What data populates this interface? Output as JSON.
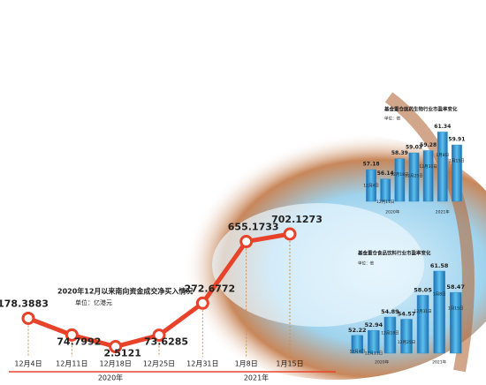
{
  "chart_data": [
    {
      "type": "line",
      "title": "2020年12月以来南向资金成交净买入情况",
      "subtitle": "单位：亿港元",
      "categories": [
        "12月4日",
        "12月11日",
        "12月18日",
        "12月25日",
        "12月31日",
        "1月8日",
        "1月15日"
      ],
      "values": [
        178.3883,
        74.7992,
        2.5121,
        73.6285,
        272.6772,
        655.1733,
        702.1273
      ],
      "color": "#e8432a",
      "year_labels": [
        "2020年",
        "2021年"
      ]
    },
    {
      "type": "bar",
      "title": "基金重仓医药生物行业市盈率变化",
      "subtitle": "单位：倍",
      "categories": [
        "12月4日",
        "12月11日",
        "12月18日",
        "12月25日",
        "12月31日",
        "1月8日",
        "1月15日"
      ],
      "values": [
        57.18,
        56.14,
        58.39,
        59.03,
        59.28,
        61.34,
        59.91
      ],
      "color": "#2f8fd0",
      "year_labels": [
        "2020年",
        "2021年"
      ]
    },
    {
      "type": "bar",
      "title": "基金重仓食品饮料行业市盈率变化",
      "subtitle": "单位：倍",
      "categories": [
        "12月4日",
        "12月11日",
        "12月18日",
        "12月25日",
        "12月31日",
        "1月8日",
        "1月15日"
      ],
      "values": [
        52.22,
        52.94,
        54.89,
        54.57,
        58.05,
        61.58,
        58.47
      ],
      "color": "#2f8fd0",
      "year_labels": [
        "2020年",
        "2021年"
      ]
    }
  ]
}
